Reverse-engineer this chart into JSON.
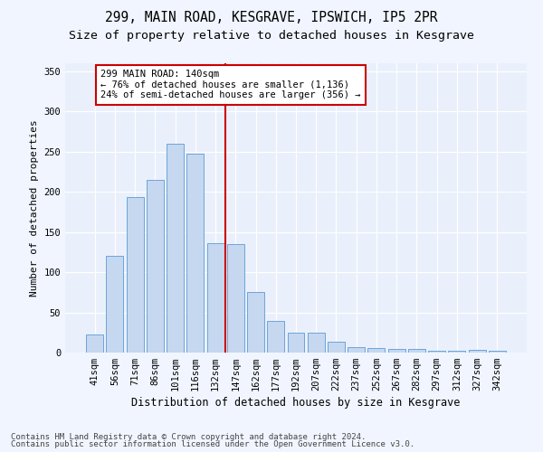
{
  "title1": "299, MAIN ROAD, KESGRAVE, IPSWICH, IP5 2PR",
  "title2": "Size of property relative to detached houses in Kesgrave",
  "xlabel": "Distribution of detached houses by size in Kesgrave",
  "ylabel": "Number of detached properties",
  "categories": [
    "41sqm",
    "56sqm",
    "71sqm",
    "86sqm",
    "101sqm",
    "116sqm",
    "132sqm",
    "147sqm",
    "162sqm",
    "177sqm",
    "192sqm",
    "207sqm",
    "222sqm",
    "237sqm",
    "252sqm",
    "267sqm",
    "282sqm",
    "297sqm",
    "312sqm",
    "327sqm",
    "342sqm"
  ],
  "values": [
    22,
    120,
    193,
    215,
    260,
    248,
    136,
    135,
    75,
    39,
    25,
    25,
    14,
    7,
    6,
    5,
    4,
    2,
    2,
    3,
    2
  ],
  "bar_color": "#c5d8f0",
  "bar_edge_color": "#5b9bd5",
  "annotation_line1": "299 MAIN ROAD: 140sqm",
  "annotation_line2": "← 76% of detached houses are smaller (1,136)",
  "annotation_line3": "24% of semi-detached houses are larger (356) →",
  "vline_color": "#cc0000",
  "annotation_box_color": "#ffffff",
  "annotation_box_edge": "#cc0000",
  "background_color": "#eaf0fb",
  "grid_color": "#ffffff",
  "ylim": [
    0,
    360
  ],
  "yticks": [
    0,
    50,
    100,
    150,
    200,
    250,
    300,
    350
  ],
  "footer1": "Contains HM Land Registry data © Crown copyright and database right 2024.",
  "footer2": "Contains public sector information licensed under the Open Government Licence v3.0.",
  "title1_fontsize": 10.5,
  "title2_fontsize": 9.5,
  "xlabel_fontsize": 8.5,
  "ylabel_fontsize": 8,
  "tick_fontsize": 7.5,
  "annotation_fontsize": 7.5,
  "footer_fontsize": 6.5
}
